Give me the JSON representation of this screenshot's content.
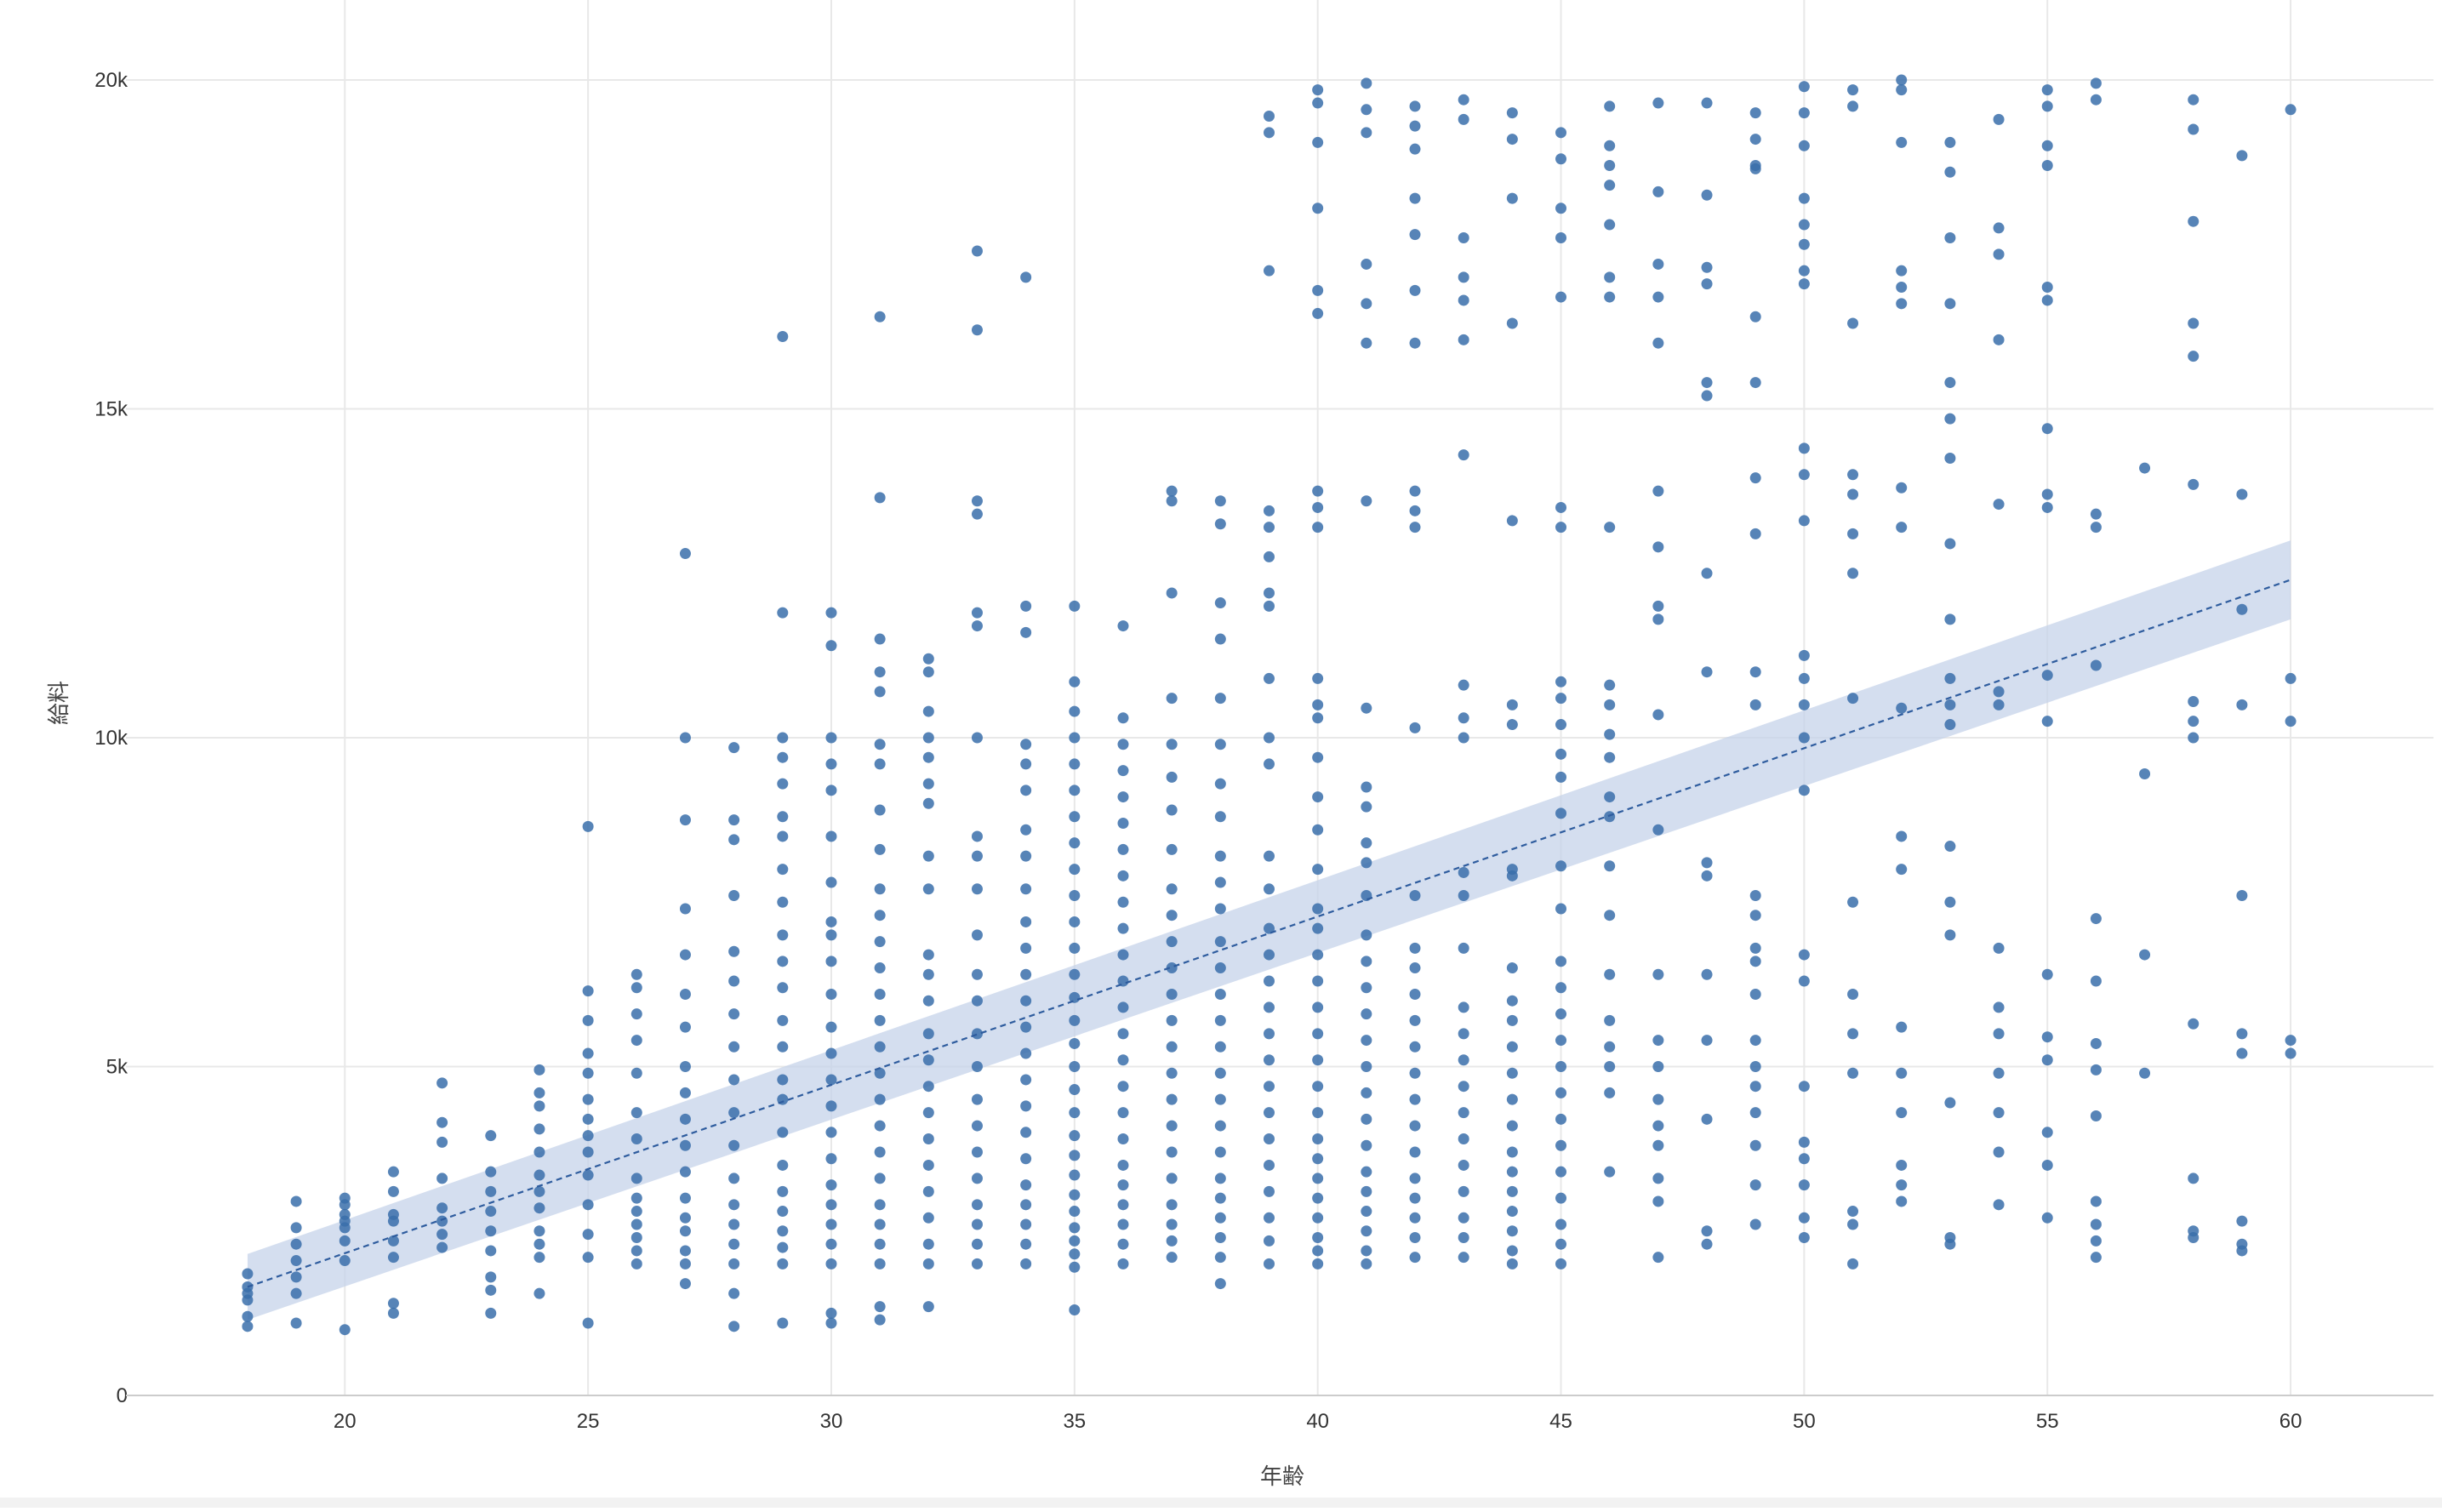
{
  "colors": {
    "point": "#3a6faa",
    "band": "#c5d3ea",
    "trend": "#2e5c9e",
    "grid": "#e8e8e8",
    "axis": "#cccccc"
  },
  "chart_data": {
    "type": "scatter",
    "title": "",
    "xlabel": "年齢",
    "ylabel": "給料",
    "xlim": [
      15.5,
      62.5
    ],
    "ylim": [
      0,
      20400
    ],
    "x_ticks": [
      20,
      25,
      30,
      35,
      40,
      45,
      50,
      55,
      60
    ],
    "x_tick_labels": [
      "20",
      "25",
      "30",
      "35",
      "40",
      "45",
      "50",
      "55",
      "60"
    ],
    "y_ticks": [
      0,
      5000,
      10000,
      15000,
      20000
    ],
    "y_tick_labels": [
      "0",
      "5k",
      "10k",
      "15k",
      "20k"
    ],
    "grid": true,
    "trend": {
      "type": "linear",
      "points": [
        [
          18,
          1650
        ],
        [
          60,
          12400
        ]
      ],
      "ci_band": {
        "x": [
          18,
          60
        ],
        "lower": [
          1150,
          11800
        ],
        "upper": [
          2150,
          13000
        ]
      },
      "line_style": "dashed"
    },
    "point_columns": [
      {
        "x": 18,
        "y": [
          1050,
          1200,
          1450,
          1550,
          1650,
          1850
        ]
      },
      {
        "x": 19,
        "y": [
          1100,
          1550,
          1800,
          2050,
          2300,
          2550,
          2950
        ]
      },
      {
        "x": 20,
        "y": [
          1000,
          2050,
          2350,
          2550,
          2650,
          2750,
          2900,
          3000
        ]
      },
      {
        "x": 21,
        "y": [
          1250,
          1400,
          2100,
          2350,
          2650,
          2750,
          3100,
          3400
        ]
      },
      {
        "x": 22,
        "y": [
          2250,
          2450,
          2650,
          2850,
          3300,
          3850,
          4150,
          4750
        ]
      },
      {
        "x": 23,
        "y": [
          1250,
          1600,
          1800,
          2200,
          2500,
          2800,
          3100,
          3400,
          3950
        ]
      },
      {
        "x": 24,
        "y": [
          1550,
          2100,
          2300,
          2500,
          2850,
          3100,
          3350,
          3700,
          4050,
          4400,
          4600,
          4950
        ]
      },
      {
        "x": 25,
        "y": [
          1100,
          2100,
          2450,
          2900,
          3350,
          3700,
          3950,
          4200,
          4500,
          4900,
          5200,
          5700,
          6150,
          8650
        ]
      },
      {
        "x": 26,
        "y": [
          2000,
          2200,
          2400,
          2600,
          2800,
          3000,
          3300,
          3900,
          4300,
          4900,
          5400,
          5800,
          6200,
          6400
        ]
      },
      {
        "x": 27,
        "y": [
          1700,
          2000,
          2200,
          2500,
          2700,
          3000,
          3400,
          3800,
          4200,
          4600,
          5000,
          5600,
          6100,
          6700,
          7400,
          8750,
          10000,
          12800
        ]
      },
      {
        "x": 28,
        "y": [
          1050,
          1550,
          2000,
          2300,
          2600,
          2900,
          3300,
          3800,
          4300,
          4800,
          5300,
          5800,
          6300,
          6750,
          7600,
          8450,
          8750,
          9850
        ]
      },
      {
        "x": 29,
        "y": [
          1100,
          2000,
          2250,
          2500,
          2800,
          3100,
          3500,
          4000,
          4500,
          4800,
          5300,
          5700,
          6200,
          6600,
          7000,
          7500,
          8000,
          8500,
          8800,
          9300,
          9700,
          10000,
          11900,
          16100
        ]
      },
      {
        "x": 30,
        "y": [
          1100,
          1250,
          2000,
          2300,
          2600,
          2900,
          3200,
          3600,
          4000,
          4400,
          4800,
          5200,
          5600,
          6100,
          6600,
          7000,
          7200,
          7800,
          8500,
          9200,
          9600,
          10000,
          11400,
          11900
        ]
      },
      {
        "x": 31,
        "y": [
          1150,
          1350,
          2000,
          2300,
          2600,
          2900,
          3300,
          3700,
          4100,
          4500,
          4900,
          5300,
          5700,
          6100,
          6500,
          6900,
          7300,
          7700,
          8300,
          8900,
          9600,
          9900,
          10700,
          11000,
          11500,
          13650,
          16400
        ]
      },
      {
        "x": 32,
        "y": [
          1350,
          2000,
          2300,
          2700,
          3100,
          3500,
          3900,
          4300,
          4700,
          5100,
          5500,
          6000,
          6400,
          6700,
          7700,
          8200,
          9000,
          9300,
          9700,
          10000,
          10400,
          11000,
          11200
        ]
      },
      {
        "x": 33,
        "y": [
          2000,
          2300,
          2600,
          2900,
          3300,
          3700,
          4100,
          4500,
          5000,
          5500,
          6000,
          6400,
          7000,
          7700,
          8200,
          8500,
          10000,
          11700,
          11900,
          13400,
          13600,
          16200,
          17400
        ]
      },
      {
        "x": 34,
        "y": [
          2000,
          2300,
          2600,
          2900,
          3200,
          3600,
          4000,
          4400,
          4800,
          5200,
          5600,
          6000,
          6400,
          6800,
          7200,
          7700,
          8200,
          8600,
          9200,
          9600,
          9900,
          11600,
          12000,
          17000
        ]
      },
      {
        "x": 35,
        "y": [
          1300,
          1950,
          2150,
          2350,
          2550,
          2800,
          3050,
          3350,
          3650,
          3950,
          4300,
          4650,
          5000,
          5350,
          5700,
          6050,
          6400,
          6800,
          7200,
          7600,
          8000,
          8400,
          8800,
          9200,
          9600,
          10000,
          10400,
          10850,
          12000
        ]
      },
      {
        "x": 36,
        "y": [
          2000,
          2300,
          2600,
          2900,
          3200,
          3500,
          3900,
          4300,
          4700,
          5100,
          5500,
          5900,
          6300,
          6700,
          7100,
          7500,
          7900,
          8300,
          8700,
          9100,
          9500,
          9900,
          10300,
          11700
        ]
      },
      {
        "x": 37,
        "y": [
          2100,
          2350,
          2600,
          2900,
          3300,
          3700,
          4100,
          4500,
          4900,
          5300,
          5700,
          6100,
          6500,
          6900,
          7300,
          7700,
          8300,
          8900,
          9400,
          9900,
          10600,
          12200,
          13600,
          13750
        ]
      },
      {
        "x": 38,
        "y": [
          1700,
          2100,
          2400,
          2700,
          3000,
          3300,
          3700,
          4100,
          4500,
          4900,
          5300,
          5700,
          6100,
          6500,
          6900,
          7400,
          7800,
          8200,
          8800,
          9300,
          9900,
          10600,
          11500,
          12050,
          13250,
          13600
        ]
      },
      {
        "x": 39,
        "y": [
          2000,
          2350,
          2700,
          3100,
          3500,
          3900,
          4300,
          4700,
          5100,
          5500,
          5900,
          6300,
          6700,
          7100,
          7700,
          8200,
          9600,
          10000,
          10900,
          12000,
          12200,
          12750,
          13200,
          13450,
          17100,
          19200,
          19450
        ]
      },
      {
        "x": 40,
        "y": [
          2000,
          2200,
          2400,
          2700,
          3000,
          3300,
          3600,
          3900,
          4300,
          4700,
          5100,
          5500,
          5900,
          6300,
          6700,
          7100,
          7400,
          8000,
          8600,
          9100,
          9700,
          10300,
          10500,
          10900,
          13200,
          13500,
          13750,
          16450,
          16800,
          18050,
          19050,
          19650,
          19850
        ]
      },
      {
        "x": 41,
        "y": [
          2000,
          2200,
          2500,
          2800,
          3100,
          3400,
          3800,
          4200,
          4600,
          5000,
          5400,
          5800,
          6200,
          6600,
          7000,
          7600,
          8100,
          8400,
          8950,
          9250,
          10450,
          13600,
          16000,
          16600,
          17200,
          19200,
          19550,
          19950
        ]
      },
      {
        "x": 42,
        "y": [
          2100,
          2400,
          2700,
          3000,
          3300,
          3700,
          4100,
          4500,
          4900,
          5300,
          5700,
          6100,
          6500,
          6800,
          7600,
          10150,
          13200,
          13450,
          13750,
          16000,
          16800,
          17650,
          18200,
          18950,
          19300,
          19600
        ]
      },
      {
        "x": 43,
        "y": [
          2100,
          2400,
          2700,
          3100,
          3500,
          3900,
          4300,
          4700,
          5100,
          5500,
          5900,
          6800,
          7600,
          7950,
          10000,
          10300,
          10800,
          14300,
          16050,
          16650,
          17000,
          17600,
          19400,
          19700
        ]
      },
      {
        "x": 44,
        "y": [
          2000,
          2200,
          2500,
          2800,
          3100,
          3400,
          3700,
          4100,
          4500,
          4900,
          5300,
          5700,
          6000,
          6500,
          7900,
          8000,
          10200,
          10500,
          13300,
          16300,
          18200,
          19100,
          19500
        ]
      },
      {
        "x": 45,
        "y": [
          2000,
          2300,
          2600,
          3000,
          3400,
          3800,
          4200,
          4600,
          5000,
          5400,
          5800,
          6200,
          6600,
          7400,
          8050,
          8850,
          9400,
          9750,
          10200,
          10600,
          10850,
          13200,
          13500,
          16700,
          17600,
          18050,
          18800,
          19200
        ]
      },
      {
        "x": 46,
        "y": [
          3400,
          4600,
          5000,
          5300,
          5700,
          6400,
          7300,
          8050,
          8800,
          9100,
          9700,
          10050,
          10500,
          10800,
          13200,
          16700,
          17000,
          17800,
          18400,
          18700,
          19000,
          19600
        ]
      },
      {
        "x": 47,
        "y": [
          2100,
          2950,
          3300,
          3800,
          4100,
          4500,
          5000,
          5400,
          6400,
          8600,
          10350,
          11800,
          12000,
          12900,
          13750,
          16000,
          16700,
          17200,
          18300,
          19650
        ]
      },
      {
        "x": 48,
        "y": [
          2300,
          2500,
          4200,
          5400,
          6400,
          7900,
          8100,
          11000,
          12500,
          15200,
          15400,
          16900,
          17150,
          18250,
          19650
        ]
      },
      {
        "x": 49,
        "y": [
          2600,
          3200,
          3800,
          4300,
          4700,
          5000,
          5400,
          6100,
          6600,
          6800,
          7300,
          7600,
          10500,
          11000,
          13100,
          13950,
          15400,
          16400,
          18650,
          18700,
          19100,
          19500
        ]
      },
      {
        "x": 50,
        "y": [
          2400,
          2700,
          3200,
          3600,
          3850,
          4700,
          6300,
          6700,
          9200,
          10000,
          10500,
          10900,
          11250,
          13300,
          14000,
          14400,
          16900,
          17100,
          17500,
          17800,
          18200,
          19000,
          19500,
          19900
        ]
      },
      {
        "x": 51,
        "y": [
          2000,
          2600,
          2800,
          4900,
          5500,
          6100,
          7500,
          10600,
          12500,
          13100,
          13700,
          14000,
          16300,
          19600,
          19850
        ]
      },
      {
        "x": 52,
        "y": [
          2950,
          3200,
          3500,
          4300,
          4900,
          5600,
          8000,
          8500,
          10450,
          13200,
          13800,
          16600,
          16850,
          17100,
          19050,
          19850,
          20000
        ]
      },
      {
        "x": 53,
        "y": [
          2300,
          2400,
          4450,
          7000,
          7500,
          8350,
          10200,
          10500,
          10900,
          11800,
          12950,
          14250,
          14850,
          15400,
          16600,
          17600,
          18600,
          19050
        ]
      },
      {
        "x": 54,
        "y": [
          2900,
          3700,
          4300,
          4900,
          5500,
          5900,
          6800,
          10500,
          10700,
          13550,
          16050,
          17350,
          17750,
          19400
        ]
      },
      {
        "x": 55,
        "y": [
          2700,
          3500,
          4000,
          5100,
          5450,
          6400,
          10250,
          10950,
          13500,
          13700,
          14700,
          16650,
          16850,
          18700,
          19000,
          19600,
          19850
        ]
      },
      {
        "x": 56,
        "y": [
          2100,
          2350,
          2600,
          2950,
          4250,
          4950,
          5350,
          6300,
          7250,
          11100,
          13200,
          13400,
          19700,
          19950
        ]
      },
      {
        "x": 57,
        "y": [
          4900,
          6700,
          9450,
          14100
        ]
      },
      {
        "x": 58,
        "y": [
          2400,
          2500,
          3300,
          5650,
          10000,
          10250,
          10550,
          13850,
          15800,
          16300,
          17850,
          19250,
          19700
        ]
      },
      {
        "x": 59,
        "y": [
          2200,
          2300,
          2650,
          5200,
          5500,
          7600,
          10500,
          11950,
          13700,
          18850
        ]
      },
      {
        "x": 60,
        "y": [
          5200,
          5400,
          10250,
          10900,
          19550
        ]
      }
    ]
  }
}
